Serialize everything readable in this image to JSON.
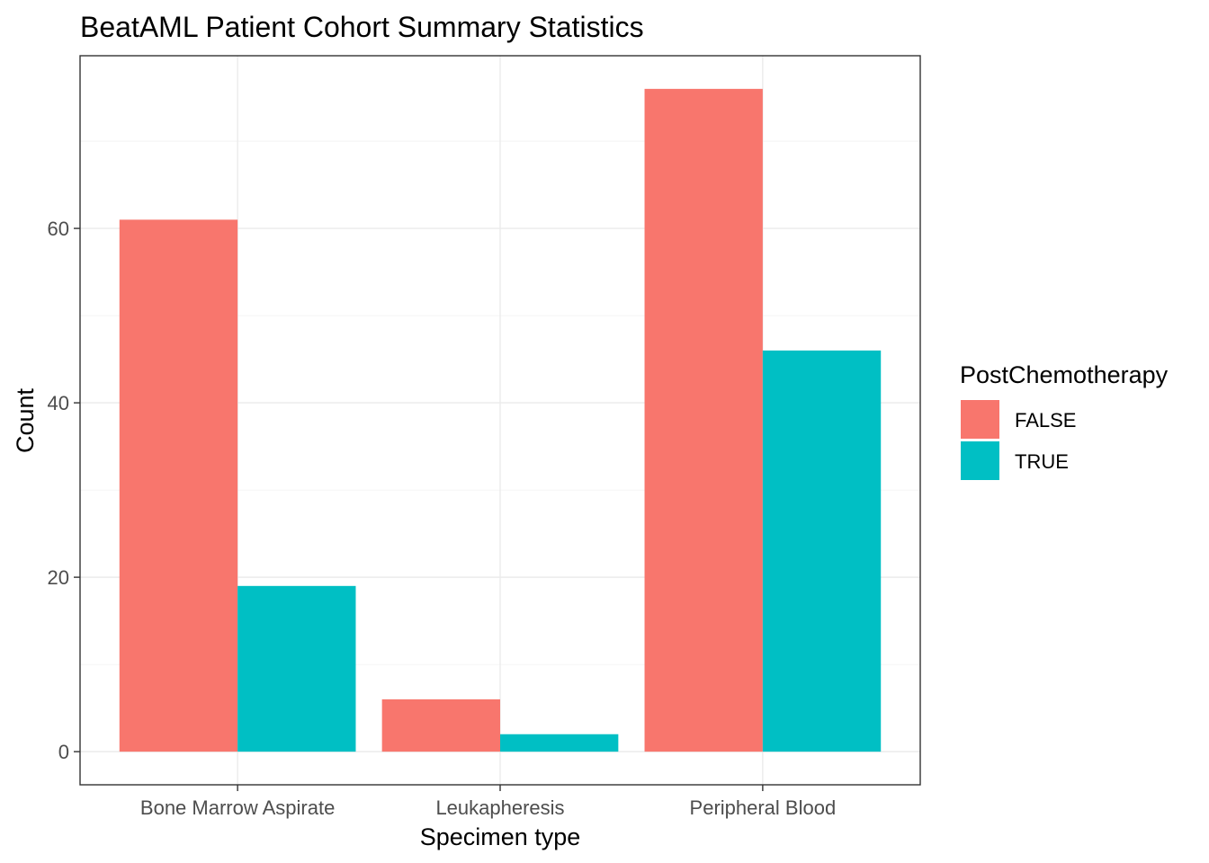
{
  "chart_data": {
    "type": "bar",
    "title": "BeatAML Patient Cohort Summary Statistics",
    "xlabel": "Specimen type",
    "ylabel": "Count",
    "categories": [
      "Bone Marrow Aspirate",
      "Leukapheresis",
      "Peripheral Blood"
    ],
    "series": [
      {
        "name": "FALSE",
        "color": "#F8766D",
        "values": [
          61,
          6,
          76
        ]
      },
      {
        "name": "TRUE",
        "color": "#00BFC4",
        "values": [
          19,
          2,
          46
        ]
      }
    ],
    "ylim": [
      -3.8,
      79.8
    ],
    "yticks": [
      0,
      20,
      40,
      60
    ],
    "grid": true,
    "legend": {
      "title": "PostChemotherapy",
      "position": "right"
    }
  }
}
